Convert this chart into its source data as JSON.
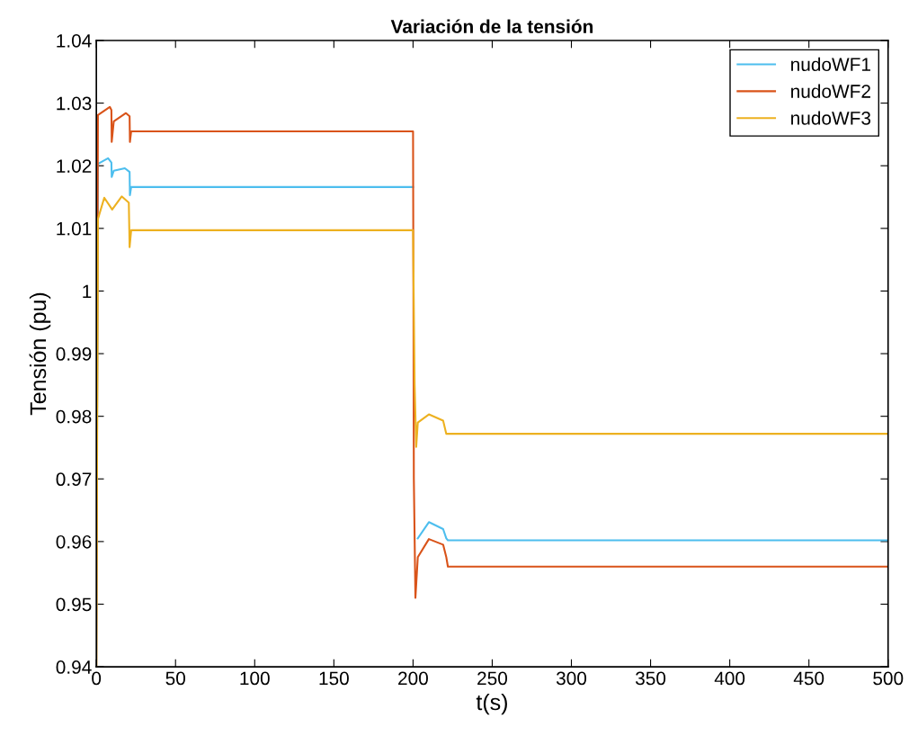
{
  "chart_data": {
    "type": "line",
    "title": "Variación de la tensión",
    "xlabel": "t(s)",
    "ylabel": "Tensión (pu)",
    "xlim": [
      0,
      500
    ],
    "ylim": [
      0.94,
      1.04
    ],
    "xticks": [
      0,
      50,
      100,
      150,
      200,
      250,
      300,
      350,
      400,
      450,
      500
    ],
    "yticks": [
      0.94,
      0.95,
      0.96,
      0.97,
      0.98,
      0.99,
      1,
      1.01,
      1.02,
      1.03,
      1.04
    ],
    "grid": false,
    "legend": "top right",
    "marker": "none",
    "line_style": "solid",
    "series": [
      {
        "name": "nudoWF1",
        "color": "#4dbeee",
        "x": [
          0,
          1,
          7.4,
          9.5,
          9.7,
          11,
          18,
          21,
          21.2,
          22,
          200,
          200.5,
          201.5,
          203,
          210,
          219,
          221,
          222,
          500
        ],
        "values": [
          0.94,
          1.0203,
          1.0212,
          1.0205,
          1.0182,
          1.0192,
          1.0196,
          1.019,
          1.0153,
          1.0166,
          1.0166,
          null,
          null,
          0.9605,
          0.9631,
          0.962,
          0.9605,
          0.9602,
          0.9602
        ]
      },
      {
        "name": "nudoWF2",
        "color": "#d95319",
        "x": [
          0,
          1,
          8.5,
          9.5,
          9.7,
          11,
          18.7,
          21,
          21.2,
          22,
          200,
          200.5,
          201.5,
          203,
          210,
          219,
          221,
          222,
          500
        ],
        "values": [
          0.94,
          1.0281,
          1.0294,
          1.0289,
          1.0238,
          1.0271,
          1.0284,
          1.0279,
          1.0238,
          1.0255,
          1.0255,
          0.97,
          0.951,
          0.9575,
          0.9604,
          0.9595,
          0.9575,
          0.956,
          0.956
        ]
      },
      {
        "name": "nudoWF3",
        "color": "#edb120",
        "x": [
          0,
          1,
          5,
          10,
          16,
          20.5,
          21,
          22,
          200,
          201,
          202,
          203,
          210,
          219,
          221,
          222,
          500
        ],
        "values": [
          0.94,
          1.0115,
          1.0149,
          1.013,
          1.0151,
          1.0141,
          1.007,
          1.0097,
          1.0097,
          0.985,
          0.9751,
          0.979,
          0.9803,
          0.9793,
          0.9772,
          0.9772,
          0.9772
        ]
      }
    ]
  }
}
